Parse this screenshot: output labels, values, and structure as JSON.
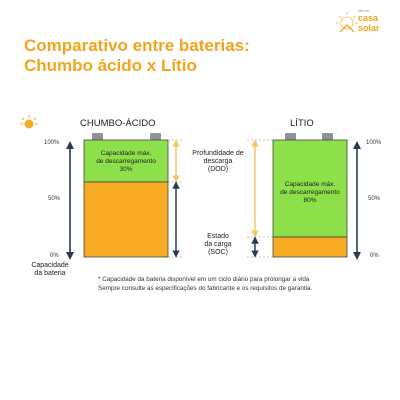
{
  "title": {
    "line1": "Comparativo entre baterias:",
    "line2": "Chumbo ácido x Lítio"
  },
  "logo": {
    "small": "Minha",
    "line1": "casa",
    "line2": "solar",
    "brand_color": "#f2a41c"
  },
  "batteries": {
    "lead": {
      "name": "CHUMBO-ÁCIDO",
      "green_text": [
        "Capacidade máx.",
        "de descarregamento",
        "30%"
      ],
      "dod_fraction": 0.3
    },
    "lithium": {
      "name": "LÍTIO",
      "green_text": [
        "Capacidade máx.",
        "de descarregamento",
        "80%"
      ],
      "dod_fraction": 0.8
    }
  },
  "scale": {
    "p100": "100%",
    "p50": "50%",
    "p0": "0%"
  },
  "labels": {
    "capacity": [
      "Capacidade",
      "da bateria"
    ],
    "dod": [
      "Profundidade de",
      "descarga",
      "(DOD)"
    ],
    "soc": [
      "Estado",
      "da carga",
      "(SOC)"
    ]
  },
  "footnote": {
    "line1": "* Capacidade da bateria disponível em um ciclo diário para prolongar a vida",
    "line2": "Sempre consulte as especificações do fabricante e os requisitos de garantia."
  },
  "colors": {
    "green": "#8ee04b",
    "orange": "#f7aa24",
    "dark_blue": "#2b3a55",
    "light_orange_arrow": "#f7c66a",
    "terminal": "#8f9399"
  },
  "icons": [
    "sun-icon",
    "house-sun-logo-icon"
  ]
}
